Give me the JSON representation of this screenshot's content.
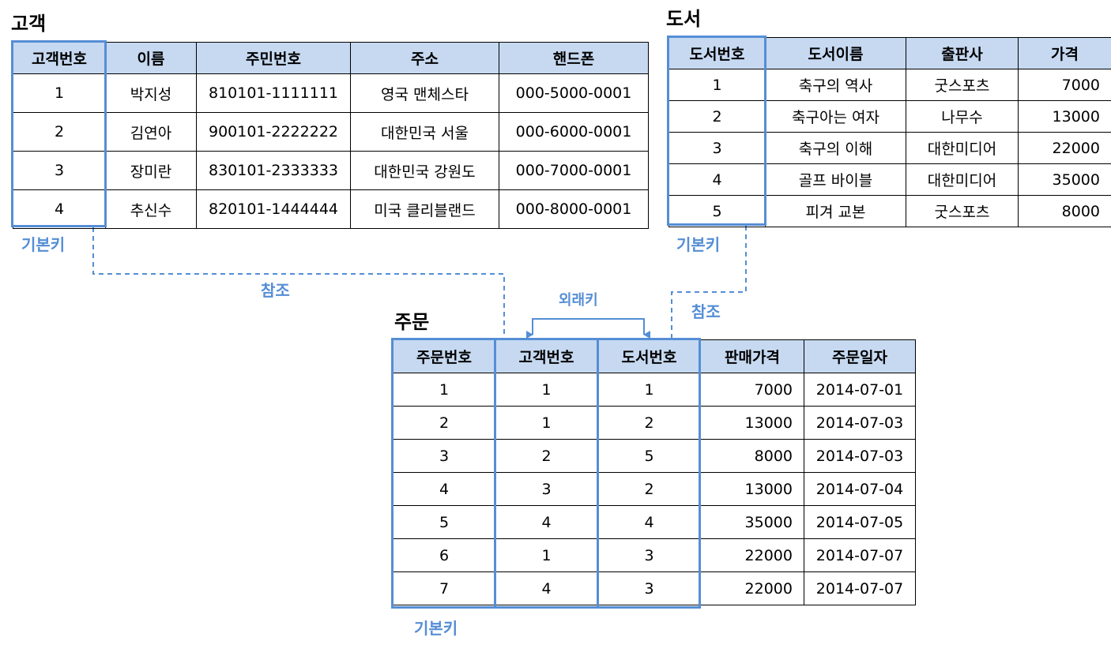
{
  "customer": {
    "title": "고객",
    "headers": [
      "고객번호",
      "이름",
      "주민번호",
      "주소",
      "핸드폰"
    ],
    "rows": [
      [
        "1",
        "박지성",
        "810101-1111111",
        "영국 맨체스타",
        "000-5000-0001"
      ],
      [
        "2",
        "김연아",
        "900101-2222222",
        "대한민국 서울",
        "000-6000-0001"
      ],
      [
        "3",
        "장미란",
        "830101-2333333",
        "대한민국 강원도",
        "000-7000-0001"
      ],
      [
        "4",
        "추신수",
        "820101-1444444",
        "미국 클리블랜드",
        "000-8000-0001"
      ]
    ],
    "pk_label": "기본키"
  },
  "book": {
    "title": "도서",
    "headers": [
      "도서번호",
      "도서이름",
      "출판사",
      "가격"
    ],
    "rows": [
      [
        "1",
        "축구의 역사",
        "굿스포츠",
        "7000"
      ],
      [
        "2",
        "축구아는 여자",
        "나무수",
        "13000"
      ],
      [
        "3",
        "축구의 이해",
        "대한미디어",
        "22000"
      ],
      [
        "4",
        "골프 바이블",
        "대한미디어",
        "35000"
      ],
      [
        "5",
        "피겨 교본",
        "굿스포츠",
        "8000"
      ]
    ],
    "pk_label": "기본키"
  },
  "order": {
    "title": "주문",
    "headers": [
      "주문번호",
      "고객번호",
      "도서번호",
      "판매가격",
      "주문일자"
    ],
    "rows": [
      [
        "1",
        "1",
        "1",
        "7000",
        "2014-07-01"
      ],
      [
        "2",
        "1",
        "2",
        "13000",
        "2014-07-03"
      ],
      [
        "3",
        "2",
        "5",
        "8000",
        "2014-07-03"
      ],
      [
        "4",
        "3",
        "2",
        "13000",
        "2014-07-04"
      ],
      [
        "5",
        "4",
        "4",
        "35000",
        "2014-07-05"
      ],
      [
        "6",
        "1",
        "3",
        "22000",
        "2014-07-07"
      ],
      [
        "7",
        "4",
        "3",
        "22000",
        "2014-07-07"
      ]
    ],
    "pk_label": "기본키",
    "fk_label": "외래키"
  },
  "relations": {
    "ref_customer_label": "참조",
    "ref_book_label": "참조"
  },
  "colors": {
    "accent": "#558ed5",
    "header_fill": "#c6d9f1",
    "border": "#000000"
  }
}
